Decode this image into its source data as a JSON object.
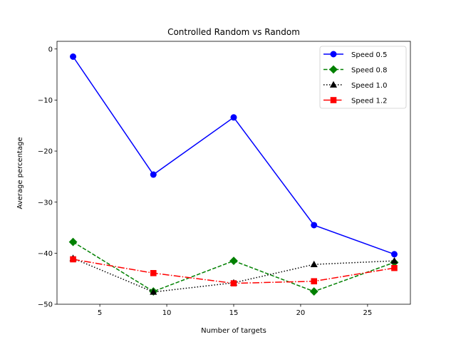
{
  "chart_data": {
    "type": "line",
    "title": "Controlled Random vs Random",
    "xlabel": "Number of targets",
    "ylabel": "Average percentage",
    "x": [
      3,
      9,
      15,
      21,
      27
    ],
    "xlim": [
      1.8,
      28.2
    ],
    "ylim": [
      -50,
      1.5
    ],
    "xticks": [
      5,
      10,
      15,
      20,
      25
    ],
    "yticks": [
      0,
      -10,
      -20,
      -30,
      -40,
      -50
    ],
    "xtick_labels": [
      "5",
      "10",
      "15",
      "20",
      "25"
    ],
    "ytick_labels": [
      "0",
      "−10",
      "−20",
      "−30",
      "−40",
      "−50"
    ],
    "grid": false,
    "legend_position": "top-right",
    "series": [
      {
        "name": "Speed 0.5",
        "values": [
          -1.5,
          -24.6,
          -13.4,
          -34.5,
          -40.2
        ],
        "color": "#0000ff",
        "marker": "circle",
        "linestyle": "solid"
      },
      {
        "name": "Speed 0.8",
        "values": [
          -37.8,
          -47.5,
          -41.5,
          -47.5,
          -41.8
        ],
        "color": "#008000",
        "marker": "diamond",
        "linestyle": "dashed"
      },
      {
        "name": "Speed 1.0",
        "values": [
          -41.0,
          -47.6,
          -45.8,
          -42.2,
          -41.5
        ],
        "color": "#000000",
        "marker": "triangle",
        "linestyle": "dotted"
      },
      {
        "name": "Speed 1.2",
        "values": [
          -41.2,
          -43.9,
          -45.9,
          -45.5,
          -42.9
        ],
        "color": "#ff0000",
        "marker": "square",
        "linestyle": "dashdot"
      }
    ]
  }
}
